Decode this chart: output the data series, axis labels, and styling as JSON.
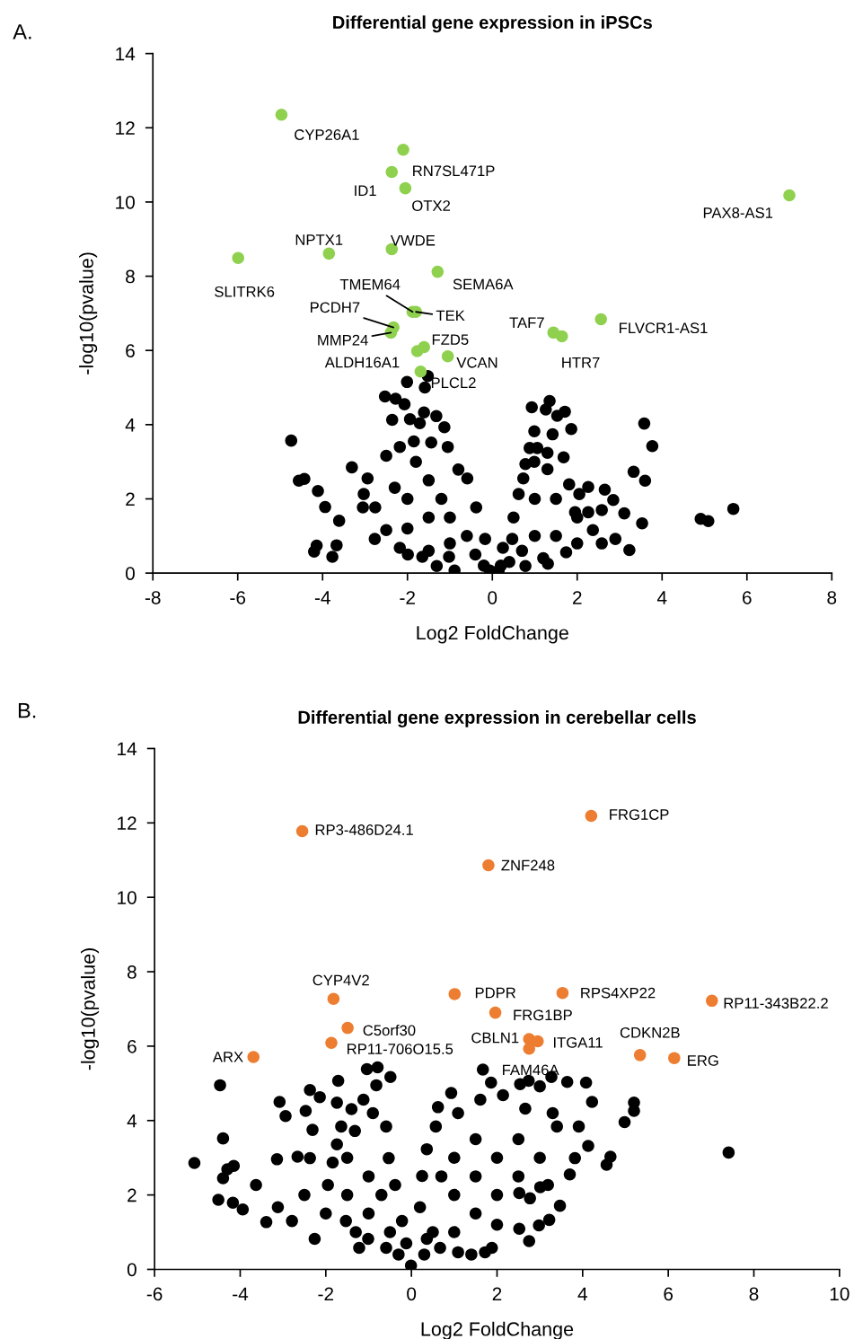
{
  "chart_data": [
    {
      "type": "scatter",
      "title": "Differential gene expression in iPSCs",
      "xlabel": "Log2 FoldChange",
      "ylabel": "-log10(pvalue)",
      "xlim": [
        -8,
        8
      ],
      "xticks": [
        -8,
        -6,
        -4,
        -2,
        0,
        2,
        4,
        6,
        8
      ],
      "ylim": [
        0,
        14
      ],
      "yticks": [
        0,
        2,
        4,
        6,
        8,
        10,
        12,
        14
      ],
      "grid": false,
      "marker": "circle",
      "series": [
        {
          "color": "#000000",
          "x": [
            -2.01,
            -1.52,
            -1.59,
            -2.53,
            -2.28,
            -2.07,
            -2.36,
            -1.61,
            -1.32,
            -1.13,
            -1.94,
            -1.71,
            -4.74,
            -1.85,
            -3.31,
            -2.94,
            -4.56,
            -4.43,
            -4.11,
            -3.94,
            -3.61,
            -4.2,
            -4.14,
            -3.77,
            -3.67,
            -2.77,
            -3.05,
            -1.99,
            -1.31,
            -0.89,
            -2.5,
            -2.18,
            -1.44,
            -1.05,
            -0.8,
            -0.59,
            -0.38,
            -0.17,
            -3.03,
            -2.76,
            -2.5,
            -2.18,
            -1.65,
            -1.02,
            -1.5,
            -1.5,
            -2.0,
            -1.0,
            -1.0,
            -2.0,
            -1.5,
            -0.6,
            -0.4,
            -2.3,
            -1.8,
            -1.2,
            0.93,
            1.26,
            1.35,
            1.53,
            1.71,
            1.86,
            0.99,
            1.42,
            0.88,
            1.06,
            1.3,
            1.68,
            0.78,
            0.99,
            3.58,
            3.77,
            3.33,
            3.6,
            5.68,
            4.91,
            5.09,
            3.11,
            3.53,
            3.23,
            2.58,
            2.85,
            2.65,
            2.26,
            1.81,
            2.05,
            2.58,
            2.9,
            1.31,
            1.74,
            0.78,
            0.47,
            0.62,
            0.73,
            0.25,
            0.15,
            -0.06,
            2.37,
            1.95,
            2.26,
            0.5,
            1.0,
            1.0,
            1.5,
            1.5,
            2.0,
            0.7,
            1.2,
            2.0,
            1.3,
            0.4,
            -0.2,
            0.2
          ],
          "values": [
            5.15,
            5.31,
            5.0,
            4.76,
            4.7,
            4.55,
            4.13,
            4.33,
            4.23,
            3.93,
            4.15,
            4.04,
            3.57,
            3.55,
            2.85,
            2.55,
            2.49,
            2.54,
            2.21,
            1.78,
            1.41,
            0.58,
            0.74,
            0.44,
            0.75,
            0.92,
            1.77,
            0.5,
            0.19,
            0.07,
            3.16,
            3.4,
            3.52,
            3.4,
            2.79,
            2.55,
            1.77,
            0.92,
            2.13,
            1.77,
            1.16,
            0.68,
            0.44,
            0.44,
            2.5,
            1.5,
            2.0,
            1.5,
            0.8,
            1.2,
            0.6,
            1.0,
            0.5,
            2.3,
            3.0,
            2.0,
            4.47,
            4.41,
            4.64,
            4.24,
            4.35,
            3.88,
            3.82,
            3.74,
            3.37,
            3.37,
            3.24,
            3.12,
            2.94,
            3.0,
            4.03,
            3.42,
            2.73,
            2.49,
            1.73,
            1.46,
            1.4,
            1.61,
            1.34,
            0.62,
            1.7,
            1.97,
            2.25,
            2.32,
            2.39,
            2.13,
            0.8,
            0.92,
            0.25,
            0.56,
            0.19,
            0.92,
            2.13,
            2.55,
            0.68,
            0.07,
            0.07,
            1.16,
            1.64,
            1.64,
            1.5,
            2.0,
            1.0,
            2.0,
            1.0,
            1.5,
            0.6,
            0.4,
            0.8,
            2.8,
            0.3,
            0.2,
            0.2
          ]
        },
        {
          "color": "#8fd14f",
          "x": [
            -4.97,
            -2.1,
            -2.37,
            -2.05,
            7.0,
            -3.85,
            -2.37,
            -5.99,
            -1.29,
            -1.88,
            -1.8,
            -2.33,
            -2.39,
            -1.77,
            -1.61,
            -1.05,
            -1.69,
            1.44,
            1.64,
            2.56
          ],
          "values": [
            12.35,
            11.41,
            10.81,
            10.37,
            10.18,
            8.61,
            8.73,
            8.49,
            8.12,
            7.04,
            7.04,
            6.62,
            6.48,
            5.98,
            6.09,
            5.84,
            5.43,
            6.48,
            6.38,
            6.84
          ]
        }
      ],
      "annotations": [
        "A.",
        {
          "text": "CYP26A1",
          "x": -4.97,
          "y": 12.35
        },
        {
          "text": "RN7SL471P",
          "x": -2.1,
          "y": 11.41
        },
        {
          "text": "ID1",
          "x": -2.37,
          "y": 10.81
        },
        {
          "text": "OTX2",
          "x": -2.05,
          "y": 10.37
        },
        {
          "text": "PAX8-AS1",
          "x": 7.0,
          "y": 10.18
        },
        {
          "text": "NPTX1",
          "x": -3.85,
          "y": 8.61
        },
        {
          "text": "VWDE",
          "x": -2.37,
          "y": 8.73
        },
        {
          "text": "SLITRK6",
          "x": -5.99,
          "y": 8.49
        },
        {
          "text": "SEMA6A",
          "x": -1.29,
          "y": 8.12
        },
        {
          "text": "TMEM64",
          "x": -1.88,
          "y": 7.04
        },
        {
          "text": "TEK",
          "x": -1.8,
          "y": 7.04
        },
        {
          "text": "PCDH7",
          "x": -2.33,
          "y": 6.62
        },
        {
          "text": "MMP24",
          "x": -2.39,
          "y": 6.48
        },
        {
          "text": "ALDH16A1",
          "x": -1.77,
          "y": 5.98
        },
        {
          "text": "FZD5",
          "x": -1.61,
          "y": 6.09
        },
        {
          "text": "VCAN",
          "x": -1.05,
          "y": 5.84
        },
        {
          "text": "PLCL2",
          "x": -1.69,
          "y": 5.43
        },
        {
          "text": "TAF7",
          "x": 1.44,
          "y": 6.48
        },
        {
          "text": "HTR7",
          "x": 1.64,
          "y": 6.38
        },
        {
          "text": "FLVCR1-AS1",
          "x": 2.56,
          "y": 6.84
        }
      ]
    },
    {
      "type": "scatter",
      "title": "Differential gene expression in cerebellar cells",
      "xlabel": "Log2 FoldChange",
      "ylabel": "-log10(pvalue)",
      "xlim": [
        -6,
        10
      ],
      "xticks": [
        -6,
        -4,
        -2,
        0,
        2,
        4,
        6,
        8,
        10
      ],
      "ylim": [
        0,
        14
      ],
      "yticks": [
        0,
        2,
        4,
        6,
        8,
        10,
        12,
        14
      ],
      "grid": false,
      "marker": "circle",
      "series": [
        {
          "color": "#000000",
          "x": [
            -4.47,
            -4.4,
            -5.07,
            -4.51,
            -4.4,
            -4.15,
            -4.3,
            -4.17,
            -3.94,
            -3.08,
            -2.94,
            -2.37,
            -2.14,
            -2.47,
            -2.31,
            -1.71,
            -1.04,
            -0.79,
            -0.49,
            -0.82,
            -1.12,
            -1.74,
            -1.4,
            -3.14,
            -2.66,
            -3.63,
            -3.39,
            -3.12,
            -2.79,
            -2.26,
            -1.95,
            -2.37,
            -1.84,
            -1.74,
            -1.64,
            -1.32,
            -0.9,
            -0.59,
            -0.53,
            -0.38,
            -0.22,
            -0.12,
            -1.53,
            -1.01,
            -0.59,
            -1.22,
            -0.01,
            -1.5,
            -1.0,
            -1.0,
            -0.5,
            -2.0,
            -1.5,
            -0.7,
            -1.3,
            -2.5,
            -0.3,
            0.62,
            0.93,
            1.67,
            1.86,
            2.14,
            2.54,
            2.74,
            3.0,
            3.27,
            3.64,
            4.08,
            4.22,
            4.13,
            3.91,
            5.2,
            5.2,
            4.98,
            4.65,
            4.56,
            7.41,
            3.7,
            3.47,
            3.22,
            2.98,
            2.75,
            2.52,
            1.88,
            1.72,
            1.4,
            1.09,
            0.67,
            0.36,
            0.2,
            0.25,
            0.36,
            0.57,
            1.09,
            1.61,
            2.66,
            3.4,
            3.82,
            3.19,
            2.77,
            3.01,
            2.52,
            1.0,
            1.5,
            2.0,
            2.5,
            1.0,
            1.5,
            2.0,
            2.5,
            3.0,
            1.0,
            1.5,
            2.0,
            0.5,
            0.3,
            0.7,
            3.3
          ],
          "values": [
            4.95,
            3.52,
            2.86,
            1.87,
            2.45,
            2.78,
            2.69,
            1.79,
            1.61,
            4.5,
            4.12,
            4.82,
            4.63,
            4.26,
            3.75,
            5.07,
            5.38,
            5.43,
            5.17,
            4.95,
            4.56,
            4.48,
            4.31,
            2.96,
            3.03,
            2.27,
            1.27,
            1.67,
            1.3,
            0.82,
            2.27,
            2.99,
            2.87,
            3.36,
            3.84,
            3.72,
            4.2,
            3.84,
            2.99,
            2.27,
            1.3,
            0.7,
            1.3,
            0.82,
            0.58,
            0.58,
            0.1,
            2.0,
            2.5,
            1.5,
            1.0,
            1.5,
            3.0,
            2.0,
            1.0,
            2.0,
            0.4,
            4.36,
            4.74,
            5.37,
            5.02,
            4.68,
            4.98,
            5.07,
            4.92,
            5.17,
            5.04,
            5.02,
            4.5,
            3.32,
            3.84,
            4.48,
            4.26,
            3.96,
            3.03,
            2.81,
            3.14,
            2.55,
            1.71,
            1.33,
            1.18,
            0.76,
            1.09,
            0.58,
            0.46,
            0.4,
            0.46,
            0.58,
            0.82,
            1.67,
            2.51,
            3.23,
            3.84,
            4.2,
            4.56,
            4.32,
            3.84,
            2.99,
            2.27,
            1.91,
            2.21,
            2.05,
            3.0,
            3.5,
            3.0,
            3.5,
            2.0,
            2.5,
            2.0,
            2.5,
            3.0,
            1.0,
            1.5,
            1.2,
            1.0,
            0.4,
            2.5,
            4.2
          ]
        },
        {
          "color": "#ed7d31",
          "x": [
            -2.55,
            4.2,
            1.8,
            -1.82,
            1.01,
            3.53,
            7.02,
            1.96,
            -1.49,
            -1.87,
            2.75,
            2.95,
            2.75,
            5.34,
            6.14,
            -3.69
          ],
          "values": [
            11.78,
            12.19,
            10.86,
            7.27,
            7.4,
            7.43,
            7.22,
            6.9,
            6.49,
            6.09,
            6.19,
            6.13,
            5.93,
            5.76,
            5.68,
            5.71
          ]
        }
      ],
      "annotations": [
        "B.",
        {
          "text": "RP3-486D24.1",
          "x": -2.55,
          "y": 11.78
        },
        {
          "text": "FRG1CP",
          "x": 4.2,
          "y": 12.19
        },
        {
          "text": "ZNF248",
          "x": 1.8,
          "y": 10.86
        },
        {
          "text": "CYP4V2",
          "x": -1.82,
          "y": 7.27
        },
        {
          "text": "PDPR",
          "x": 1.01,
          "y": 7.4
        },
        {
          "text": "RPS4XP22",
          "x": 3.53,
          "y": 7.43
        },
        {
          "text": "RP11-343B22.2",
          "x": 7.02,
          "y": 7.22
        },
        {
          "text": "FRG1BP",
          "x": 1.96,
          "y": 6.9
        },
        {
          "text": "C5orf30",
          "x": -1.49,
          "y": 6.49
        },
        {
          "text": "RP11-706O15.5",
          "x": -1.87,
          "y": 6.09
        },
        {
          "text": "CBLN1",
          "x": 2.75,
          "y": 6.19
        },
        {
          "text": "ITGA11",
          "x": 2.95,
          "y": 6.13
        },
        {
          "text": "FAM46A",
          "x": 2.75,
          "y": 5.93
        },
        {
          "text": "CDKN2B",
          "x": 5.34,
          "y": 5.76
        },
        {
          "text": "ERG",
          "x": 6.14,
          "y": 5.68
        },
        {
          "text": "ARX",
          "x": -3.69,
          "y": 5.71
        }
      ]
    }
  ]
}
